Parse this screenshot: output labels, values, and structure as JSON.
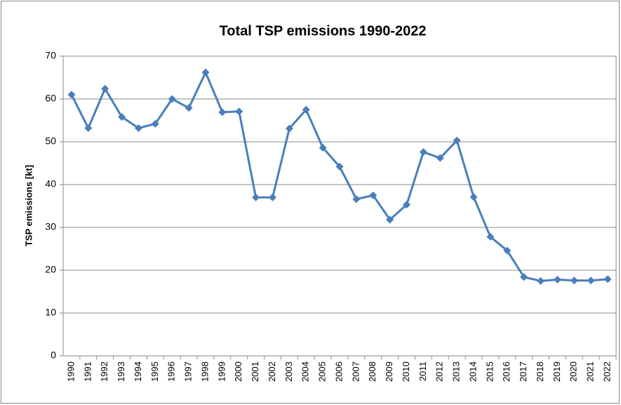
{
  "chart_data": {
    "type": "line",
    "title": "Total TSP emissions 1990-2022",
    "ylabel": "TSP  emissions [kt]",
    "categories": [
      "1990",
      "1991",
      "1992",
      "1993",
      "1994",
      "1995",
      "1996",
      "1997",
      "1998",
      "1999",
      "2000",
      "2001",
      "2002",
      "2003",
      "2004",
      "2005",
      "2006",
      "2007",
      "2008",
      "2009",
      "2010",
      "2011",
      "2012",
      "2013",
      "2014",
      "2015",
      "2016",
      "2017",
      "2018",
      "2019",
      "2020",
      "2021",
      "2022"
    ],
    "values": [
      61.0,
      53.2,
      62.4,
      55.8,
      53.2,
      54.2,
      60.0,
      57.9,
      66.2,
      56.9,
      57.1,
      37.0,
      37.0,
      53.1,
      57.5,
      48.6,
      44.2,
      36.6,
      37.5,
      31.8,
      35.3,
      47.6,
      46.2,
      50.3,
      37.1,
      27.8,
      24.6,
      18.4,
      17.5,
      17.8,
      17.6,
      17.6,
      17.9
    ],
    "color": "#4a7ebb",
    "ylim": [
      0,
      70
    ],
    "yticks": [
      0,
      10,
      20,
      30,
      40,
      50,
      60,
      70
    ],
    "grid": true
  }
}
